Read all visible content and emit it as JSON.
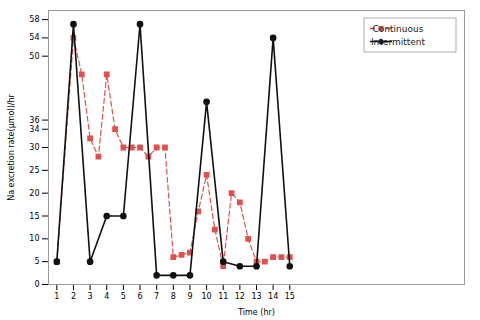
{
  "chart_data": {
    "type": "line",
    "xlabel": "Time (hr)",
    "ylabel": "Na excretion rate(µmol)/hr",
    "xlim": [
      0.5,
      25.5
    ],
    "ylim": [
      0,
      60
    ],
    "xticks": [
      1,
      2,
      3,
      4,
      5,
      6,
      7,
      8,
      9,
      10,
      11,
      12,
      13,
      14,
      15
    ],
    "yticks": [
      0,
      5,
      10,
      15,
      20,
      25,
      30,
      34,
      36,
      50,
      54,
      58
    ],
    "grid": false,
    "legend": "upper right",
    "series": [
      {
        "name": "Continuous",
        "color": "#e05050",
        "line_style": "dashed",
        "marker": "square",
        "x": [
          1,
          2,
          2.5,
          3,
          3.5,
          4,
          4.5,
          5,
          5.5,
          6,
          6.5,
          7,
          7.5,
          8,
          8.5,
          9,
          9.5,
          10,
          10.5,
          11,
          11.5,
          12,
          12.5,
          13,
          13.5,
          14,
          14.5,
          15
        ],
        "values": [
          5,
          54,
          46,
          32,
          28,
          46,
          34,
          30,
          30,
          30,
          28,
          30,
          30,
          6,
          6.5,
          7,
          16,
          24,
          12,
          4,
          20,
          18,
          10,
          5,
          5,
          6,
          6,
          6
        ]
      },
      {
        "name": "Intermittent",
        "color": "#111111",
        "line_style": "solid",
        "marker": "circle",
        "x": [
          1,
          2,
          3,
          4,
          5,
          6,
          7,
          8,
          9,
          10,
          11,
          12,
          13,
          14,
          15
        ],
        "values": [
          5,
          57,
          5,
          15,
          15,
          57,
          2,
          2,
          2,
          40,
          5,
          4,
          4,
          54,
          4
        ]
      }
    ]
  }
}
